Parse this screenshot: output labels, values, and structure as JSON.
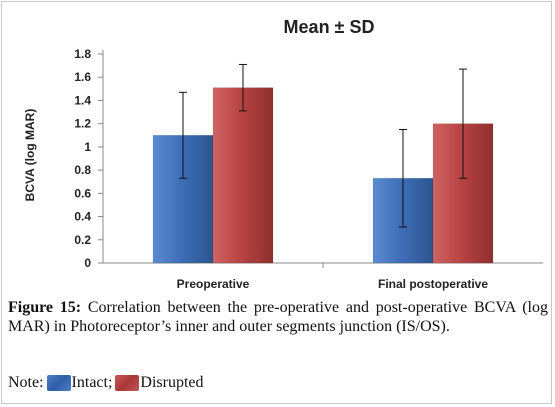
{
  "chart_data": {
    "type": "bar",
    "title": "Mean ± SD",
    "ylabel": "BCVA (log MAR)",
    "xlabel": "",
    "categories": [
      "Preoperative",
      "Final postoperative"
    ],
    "ylim": [
      0,
      1.8
    ],
    "yticks": [
      "0",
      "0.2",
      "0.4",
      "0.6",
      "0.8",
      "1",
      "1.2",
      "1.4",
      "1.6",
      "1.8"
    ],
    "grid": false,
    "series": [
      {
        "name": "Intact",
        "values": [
          1.1,
          0.73
        ],
        "error": [
          0.37,
          0.42
        ],
        "color": "#3f6fb8"
      },
      {
        "name": "Disrupted",
        "values": [
          1.51,
          1.2
        ],
        "error": [
          0.2,
          0.47
        ],
        "color": "#b94444"
      }
    ]
  },
  "caption": {
    "label": "Figure 15:",
    "text": "Correlation between the pre-operative and post-operative BCVA (log MAR) in Photoreceptor’s inner and outer segments junction (IS/OS)."
  },
  "note": {
    "prefix": "Note:",
    "items": [
      {
        "label": "Intact;",
        "color": "#3f6fb8"
      },
      {
        "label": "Disrupted",
        "color": "#b94444"
      }
    ]
  }
}
